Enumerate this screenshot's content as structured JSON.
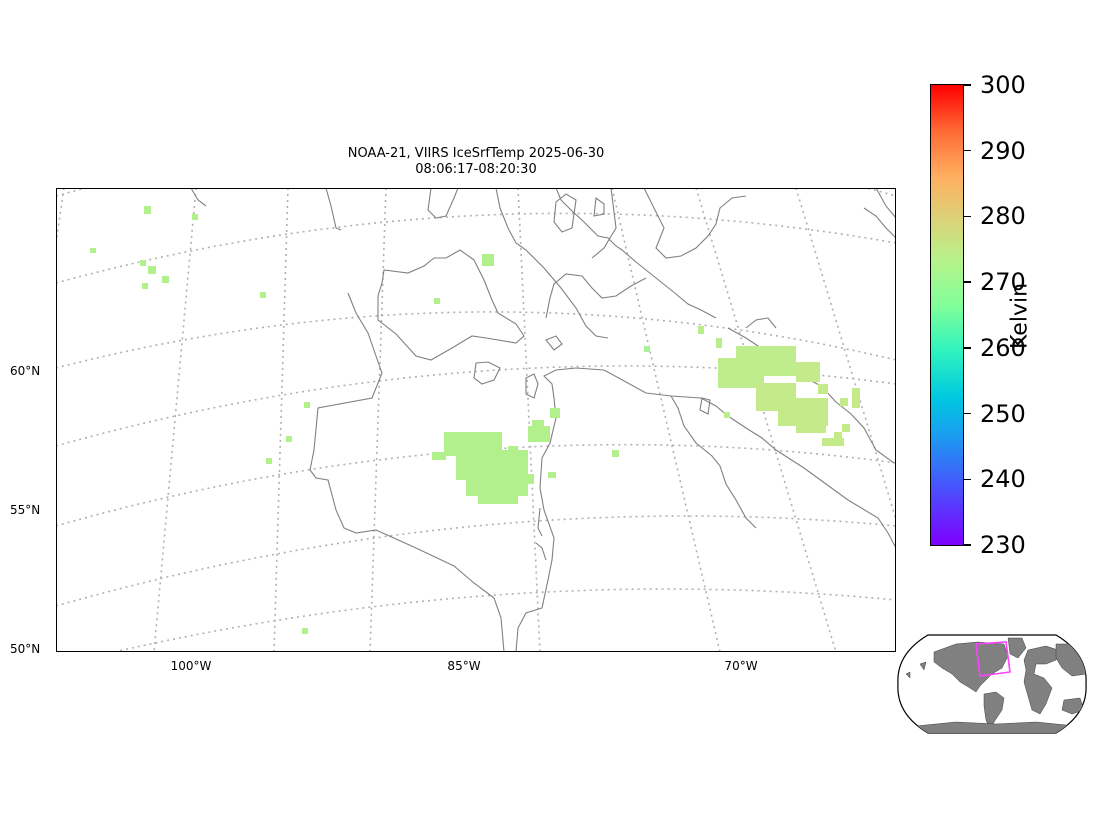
{
  "title": {
    "line1": "NOAA-21, VIIRS IceSrfTemp 2025-06-30",
    "line2": "08:06:17-08:20:30"
  },
  "map": {
    "lat_labels": [
      "60°N",
      "55°N",
      "50°N"
    ],
    "lon_labels": [
      "100°W",
      "85°W",
      "70°W"
    ],
    "coastline_color": "#808080",
    "graticule_color": "#b0b0b0"
  },
  "colorbar": {
    "label": "Kelvin",
    "min": 230,
    "max": 300,
    "ticks": [
      "300",
      "290",
      "280",
      "270",
      "260",
      "250",
      "240",
      "230"
    ],
    "colormap": "rainbow"
  },
  "inset": {
    "land_color": "#808080",
    "highlight_color": "#ff40ff"
  },
  "chart_data": {
    "type": "heatmap",
    "variable": "IceSrfTemp",
    "units": "Kelvin",
    "vmin": 230,
    "vmax": 300,
    "observed_value_range_K": [
      268,
      276
    ]
  }
}
